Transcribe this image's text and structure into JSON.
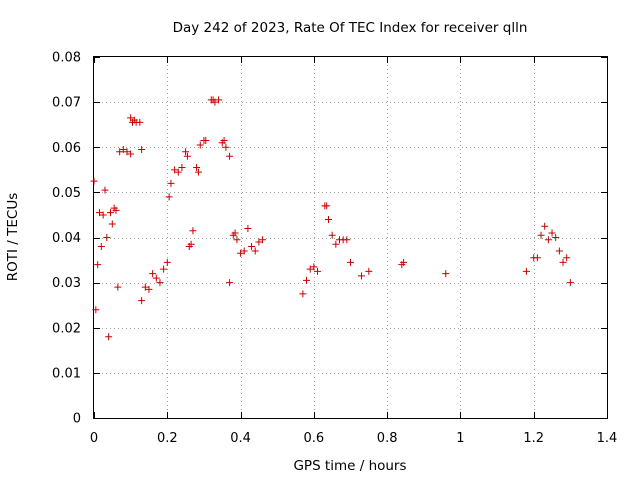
{
  "chart_data": {
    "type": "scatter",
    "title": "Day 242 of 2023, Rate Of TEC Index for receiver qlln",
    "xlabel": "GPS time / hours",
    "ylabel": "ROTI / TECUs",
    "xlim": [
      0,
      1.4
    ],
    "ylim": [
      0,
      0.08
    ],
    "x_ticks": [
      0,
      0.2,
      0.4,
      0.6,
      0.8,
      1,
      1.2,
      1.4
    ],
    "x_tick_labels": [
      "0",
      "0.2",
      "0.4",
      "0.6",
      "0.8",
      "1",
      "1.2",
      "1.4"
    ],
    "y_ticks": [
      0,
      0.01,
      0.02,
      0.03,
      0.04,
      0.05,
      0.06,
      0.07,
      0.08
    ],
    "y_tick_labels": [
      "0",
      "0.01",
      "0.02",
      "0.03",
      "0.04",
      "0.05",
      "0.06",
      "0.07",
      "0.08"
    ],
    "grid": true,
    "marker": "+",
    "series": [
      {
        "color": "#cc0000",
        "points": [
          [
            0.0,
            0.0525
          ],
          [
            0.005,
            0.024
          ],
          [
            0.01,
            0.034
          ],
          [
            0.015,
            0.0455
          ],
          [
            0.02,
            0.038
          ],
          [
            0.025,
            0.045
          ],
          [
            0.03,
            0.0505
          ],
          [
            0.035,
            0.04
          ],
          [
            0.04,
            0.018
          ],
          [
            0.045,
            0.0455
          ],
          [
            0.05,
            0.043
          ],
          [
            0.055,
            0.0465
          ],
          [
            0.06,
            0.046
          ],
          [
            0.065,
            0.029
          ],
          [
            0.07,
            0.059
          ],
          [
            0.08,
            0.0595
          ],
          [
            0.09,
            0.059
          ],
          [
            0.1,
            0.0585
          ],
          [
            0.1,
            0.0665
          ],
          [
            0.105,
            0.0655
          ],
          [
            0.11,
            0.066
          ],
          [
            0.115,
            0.0655
          ],
          [
            0.125,
            0.0655
          ],
          [
            0.13,
            0.026
          ],
          [
            0.13,
            0.0595
          ],
          [
            0.14,
            0.029
          ],
          [
            0.15,
            0.0285
          ],
          [
            0.16,
            0.032
          ],
          [
            0.17,
            0.031
          ],
          [
            0.18,
            0.03
          ],
          [
            0.19,
            0.033
          ],
          [
            0.2,
            0.0345
          ],
          [
            0.205,
            0.049
          ],
          [
            0.21,
            0.052
          ],
          [
            0.22,
            0.055
          ],
          [
            0.23,
            0.0545
          ],
          [
            0.24,
            0.0555
          ],
          [
            0.25,
            0.059
          ],
          [
            0.255,
            0.058
          ],
          [
            0.26,
            0.038
          ],
          [
            0.265,
            0.0385
          ],
          [
            0.27,
            0.0415
          ],
          [
            0.28,
            0.0555
          ],
          [
            0.285,
            0.0545
          ],
          [
            0.29,
            0.0605
          ],
          [
            0.3,
            0.0615
          ],
          [
            0.305,
            0.0615
          ],
          [
            0.32,
            0.0705
          ],
          [
            0.325,
            0.0705
          ],
          [
            0.33,
            0.07
          ],
          [
            0.34,
            0.0705
          ],
          [
            0.35,
            0.061
          ],
          [
            0.355,
            0.0615
          ],
          [
            0.36,
            0.06
          ],
          [
            0.37,
            0.058
          ],
          [
            0.37,
            0.03
          ],
          [
            0.38,
            0.0405
          ],
          [
            0.385,
            0.041
          ],
          [
            0.39,
            0.0395
          ],
          [
            0.4,
            0.0365
          ],
          [
            0.41,
            0.037
          ],
          [
            0.42,
            0.042
          ],
          [
            0.43,
            0.038
          ],
          [
            0.44,
            0.037
          ],
          [
            0.45,
            0.039
          ],
          [
            0.46,
            0.0395
          ],
          [
            0.57,
            0.0275
          ],
          [
            0.58,
            0.0305
          ],
          [
            0.59,
            0.033
          ],
          [
            0.6,
            0.0335
          ],
          [
            0.61,
            0.0325
          ],
          [
            0.63,
            0.047
          ],
          [
            0.635,
            0.047
          ],
          [
            0.64,
            0.044
          ],
          [
            0.65,
            0.0405
          ],
          [
            0.66,
            0.0385
          ],
          [
            0.67,
            0.0395
          ],
          [
            0.68,
            0.0395
          ],
          [
            0.69,
            0.0395
          ],
          [
            0.7,
            0.0345
          ],
          [
            0.73,
            0.0315
          ],
          [
            0.75,
            0.0325
          ],
          [
            0.84,
            0.034
          ],
          [
            0.845,
            0.0345
          ],
          [
            0.96,
            0.032
          ],
          [
            1.18,
            0.0325
          ],
          [
            1.2,
            0.0355
          ],
          [
            1.21,
            0.0355
          ],
          [
            1.22,
            0.0405
          ],
          [
            1.23,
            0.0425
          ],
          [
            1.24,
            0.0395
          ],
          [
            1.25,
            0.041
          ],
          [
            1.26,
            0.04
          ],
          [
            1.27,
            0.037
          ],
          [
            1.28,
            0.0345
          ],
          [
            1.29,
            0.0355
          ],
          [
            1.3,
            0.03
          ]
        ]
      }
    ]
  }
}
